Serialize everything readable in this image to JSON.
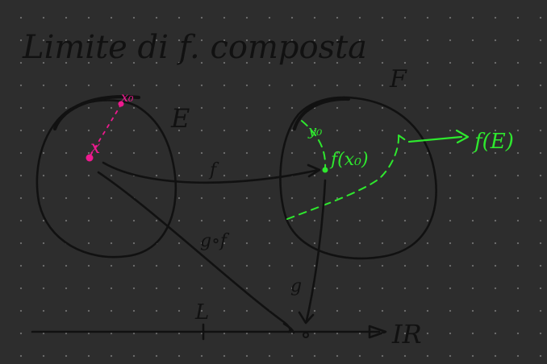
{
  "title": "Limite di f. composta",
  "set_E": "E",
  "set_F": "F",
  "point_x": "x",
  "point_x0": "x₀",
  "point_y0": "y₀",
  "point_fx0": "f(x₀)",
  "image_label": "f(E)",
  "map_f": "f",
  "map_g": "g",
  "map_gof": "g∘f",
  "limit_L": "L",
  "reals": "IR",
  "colors": {
    "ink": "#111111",
    "green": "#2ee82e",
    "pink": "#ee1a8f",
    "background": "#2d2d2d"
  }
}
